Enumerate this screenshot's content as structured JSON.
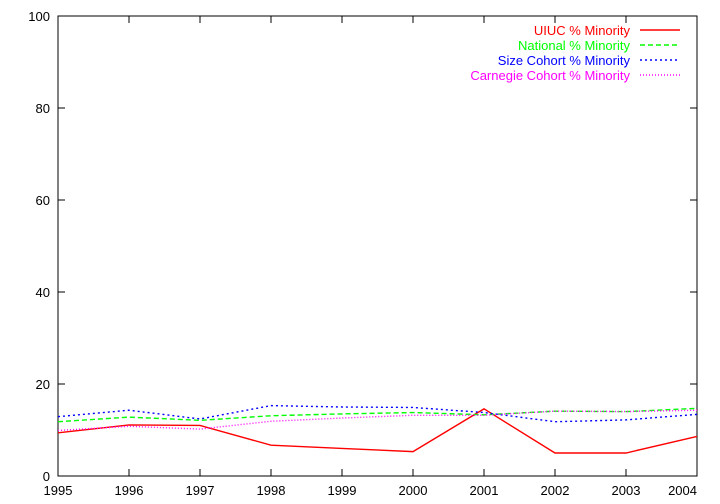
{
  "chart_data": {
    "type": "line",
    "x": [
      1995,
      1996,
      1997,
      1998,
      1999,
      2000,
      2001,
      2002,
      2003,
      2004
    ],
    "xticks": [
      "1995",
      "1996",
      "1997",
      "1998",
      "1999",
      "2000",
      "2001",
      "2002",
      "2003",
      "2004"
    ],
    "yticks": [
      "0",
      "20",
      "40",
      "60",
      "80",
      "100"
    ],
    "xlim": [
      1995,
      2004
    ],
    "ylim": [
      0,
      100
    ],
    "grid": false,
    "legend_position": "top-right",
    "series": [
      {
        "name": "UIUC % Minority",
        "color": "#ff0000",
        "dash": "solid",
        "values": [
          9.4,
          11.1,
          11.0,
          6.7,
          6.0,
          5.3,
          14.6,
          5.0,
          5.0,
          8.6
        ]
      },
      {
        "name": "National % Minority",
        "color": "#00ff00",
        "dash": "dashed",
        "values": [
          11.8,
          12.8,
          12.1,
          13.1,
          13.5,
          13.8,
          13.3,
          14.1,
          14.0,
          14.7
        ]
      },
      {
        "name": "Size Cohort % Minority",
        "color": "#0000ff",
        "dash": "dotted",
        "values": [
          12.9,
          14.3,
          12.4,
          15.3,
          15.0,
          14.9,
          13.8,
          11.8,
          12.2,
          13.4
        ]
      },
      {
        "name": "Carnegie Cohort % Minority",
        "color": "#ff00ff",
        "dash": "fine-dotted",
        "values": [
          9.9,
          10.8,
          10.2,
          11.9,
          12.6,
          13.2,
          13.2,
          14.1,
          14.0,
          14.3
        ]
      }
    ]
  }
}
